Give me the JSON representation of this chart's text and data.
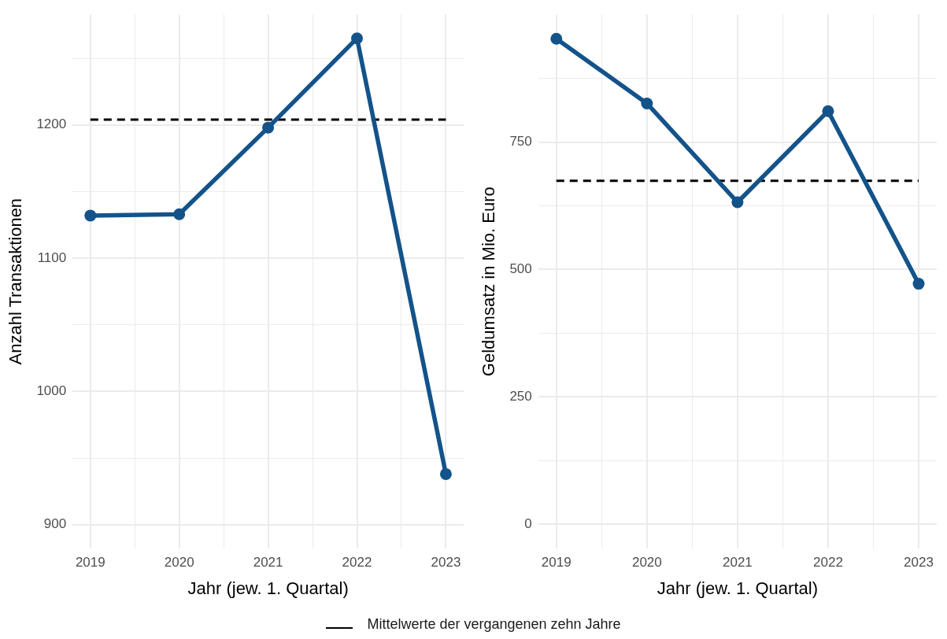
{
  "chart_data": [
    {
      "type": "line",
      "xlabel": "Jahr (jew. 1. Quartal)",
      "ylabel": "Anzahl Transaktionen",
      "x": [
        2019,
        2020,
        2021,
        2022,
        2023
      ],
      "series": [
        {
          "color": "#13538a",
          "values": [
            1132,
            1133,
            1198,
            1265,
            938
          ]
        }
      ],
      "xlim": [
        2018.8,
        2023.2
      ],
      "xticks": [
        2019,
        {
          "value": 2019.5,
          "label": null
        },
        2020,
        {
          "value": 2020.5,
          "label": null
        },
        2021,
        {
          "value": 2021.5,
          "label": null
        },
        2022,
        {
          "value": 2022.5,
          "label": null
        },
        2023
      ],
      "ylim": [
        882,
        1283
      ],
      "yticks": [
        900,
        {
          "value": 950,
          "label": null
        },
        1000,
        {
          "value": 1050,
          "label": null
        },
        1100,
        {
          "value": 1150,
          "label": null
        },
        1200,
        {
          "value": 1250,
          "label": null
        }
      ],
      "ref_lines": [
        {
          "axis": "y",
          "value": 1204,
          "label": "Mittelwerte der vergangenen zehn Jahre",
          "color": "#000000",
          "line_style": "dashed"
        }
      ],
      "grid": true,
      "legend": "bottom",
      "marker": "circle",
      "line_style": "solid"
    },
    {
      "type": "line",
      "xlabel": "Jahr (jew. 1. Quartal)",
      "ylabel": "Geldumsatz in Mio. Euro",
      "x": [
        2019,
        2020,
        2021,
        2022,
        2023
      ],
      "series": [
        {
          "color": "#13538a",
          "values": [
            953,
            826,
            632,
            811,
            472
          ]
        }
      ],
      "xlim": [
        2018.8,
        2023.2
      ],
      "xticks": [
        2019,
        {
          "value": 2019.5,
          "label": null
        },
        2020,
        {
          "value": 2020.5,
          "label": null
        },
        2021,
        {
          "value": 2021.5,
          "label": null
        },
        2022,
        {
          "value": 2022.5,
          "label": null
        },
        2023
      ],
      "ylim": [
        -48,
        1001
      ],
      "yticks": [
        0,
        {
          "value": 125,
          "label": null
        },
        250,
        {
          "value": 375,
          "label": null
        },
        500,
        {
          "value": 625,
          "label": null
        },
        750,
        {
          "value": 875,
          "label": null
        }
      ],
      "ref_lines": [
        {
          "axis": "y",
          "value": 674,
          "color": "#000000",
          "line_style": "dashed"
        }
      ],
      "grid": true,
      "marker": "circle",
      "line_style": "solid"
    }
  ]
}
